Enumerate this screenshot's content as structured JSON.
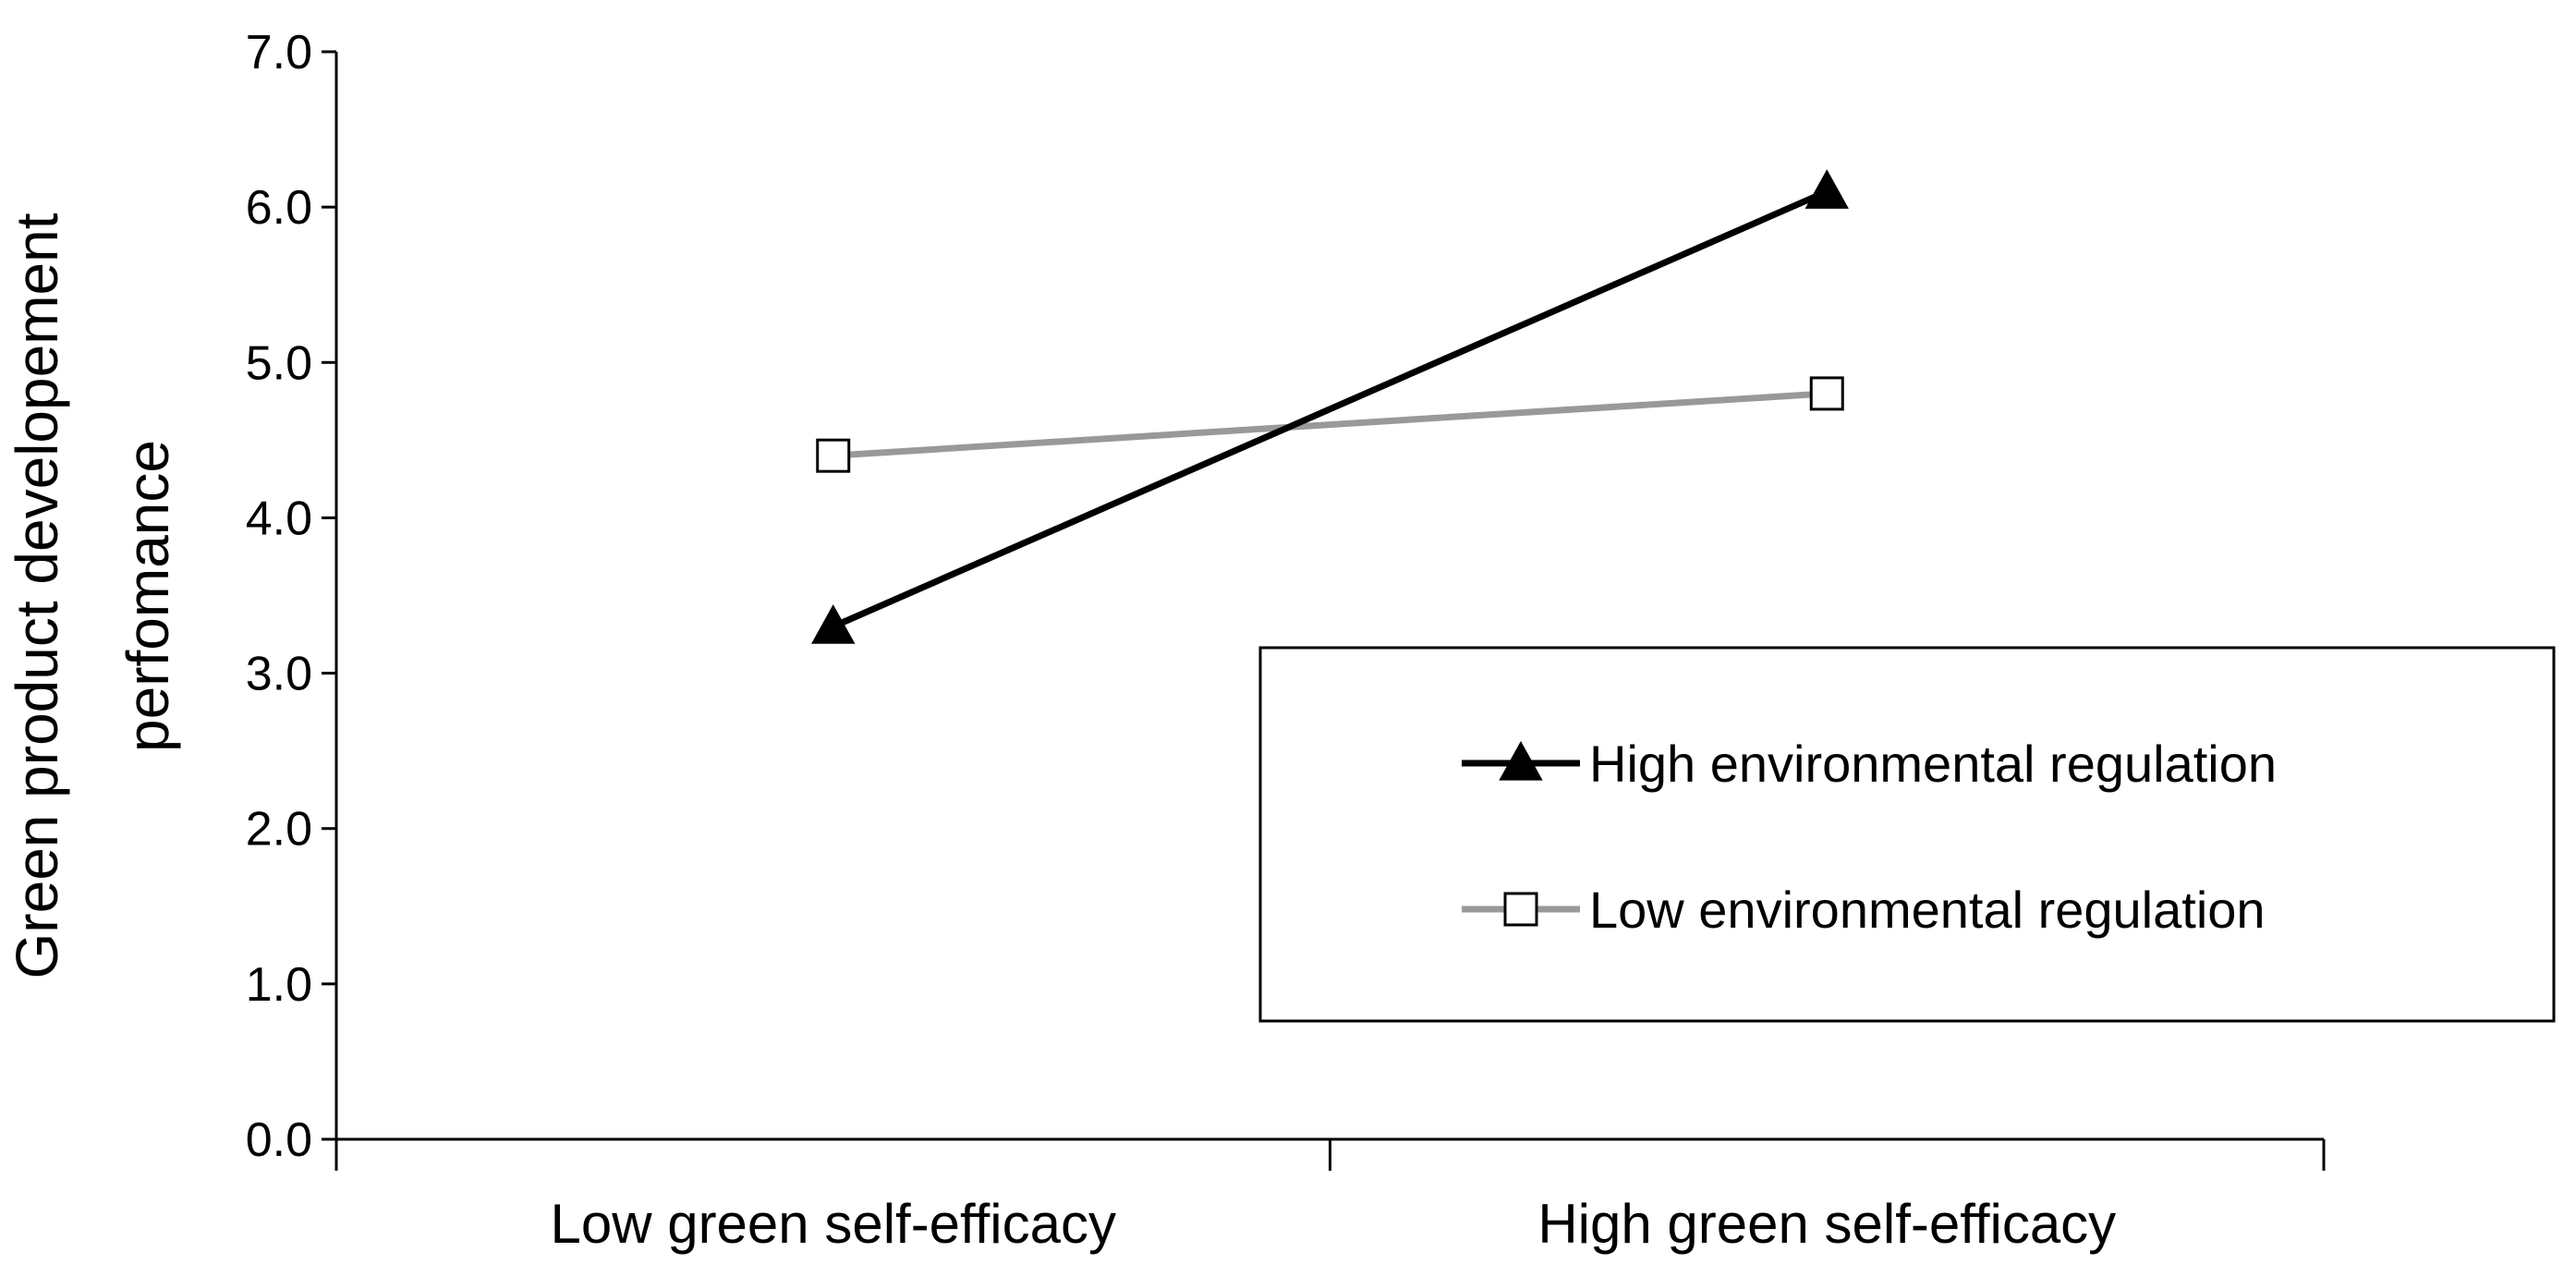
{
  "chart_data": {
    "type": "line",
    "title": "",
    "xlabel": "",
    "ylabel_lines": [
      "Green product developement",
      "perfomance"
    ],
    "categories": [
      "Low green self-efficacy",
      "High green self-efficacy"
    ],
    "ylim": [
      0,
      7
    ],
    "yticks": [
      0,
      1,
      2,
      3,
      4,
      5,
      6,
      7
    ],
    "ytick_labels": [
      "0.0",
      "1.0",
      "2.0",
      "3.0",
      "4.0",
      "5.0",
      "6.0",
      "7.0"
    ],
    "grid": false,
    "legend_position": "bottom-right",
    "series": [
      {
        "name": "High environmental regulation",
        "values": [
          3.3,
          6.1
        ],
        "color": "#000000",
        "marker": "filled-triangle"
      },
      {
        "name": "Low environmental regulation",
        "values": [
          4.4,
          4.8
        ],
        "color": "#999999",
        "marker": "open-square"
      }
    ]
  }
}
